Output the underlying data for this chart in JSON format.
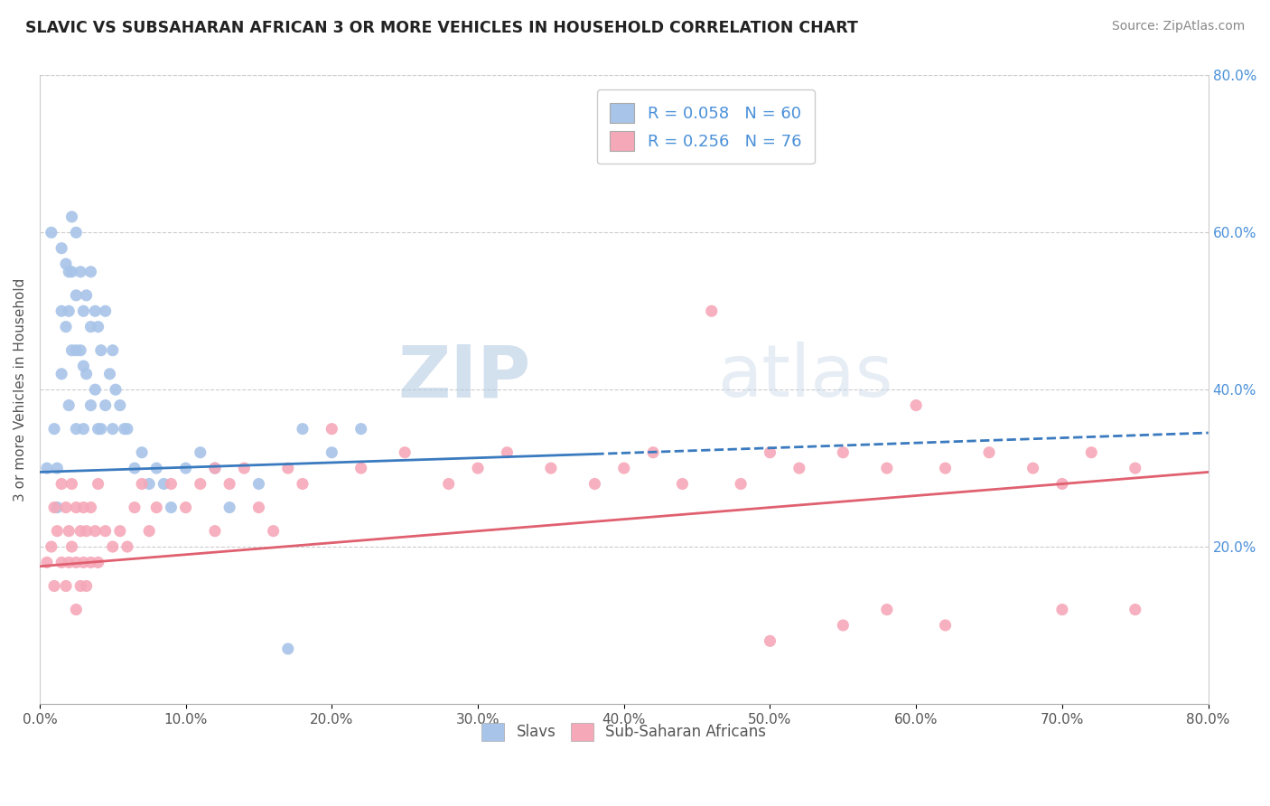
{
  "title": "SLAVIC VS SUBSAHARAN AFRICAN 3 OR MORE VEHICLES IN HOUSEHOLD CORRELATION CHART",
  "source": "Source: ZipAtlas.com",
  "ylabel": "3 or more Vehicles in Household",
  "ylabel_right_ticks": [
    "20.0%",
    "40.0%",
    "60.0%",
    "80.0%"
  ],
  "ylabel_right_values": [
    0.2,
    0.4,
    0.6,
    0.8
  ],
  "xmin": 0.0,
  "xmax": 0.8,
  "ymin": 0.0,
  "ymax": 0.8,
  "legend_slavs_R": "R = 0.058",
  "legend_slavs_N": "N = 60",
  "legend_subsaharan_R": "R = 0.256",
  "legend_subsaharan_N": "N = 76",
  "slavs_color": "#a8c4e8",
  "subsaharan_color": "#f5a8b8",
  "slavs_line_color": "#3a7abf",
  "subsaharan_line_color": "#e06070",
  "watermark_zip": "ZIP",
  "watermark_atlas": "atlas",
  "slavs_scatter_x": [
    0.005,
    0.008,
    0.01,
    0.012,
    0.012,
    0.015,
    0.015,
    0.015,
    0.018,
    0.018,
    0.02,
    0.02,
    0.02,
    0.022,
    0.022,
    0.022,
    0.025,
    0.025,
    0.025,
    0.025,
    0.028,
    0.028,
    0.03,
    0.03,
    0.03,
    0.032,
    0.032,
    0.035,
    0.035,
    0.035,
    0.038,
    0.038,
    0.04,
    0.04,
    0.042,
    0.042,
    0.045,
    0.045,
    0.048,
    0.05,
    0.05,
    0.052,
    0.055,
    0.058,
    0.06,
    0.065,
    0.07,
    0.075,
    0.08,
    0.085,
    0.09,
    0.1,
    0.11,
    0.12,
    0.13,
    0.15,
    0.17,
    0.18,
    0.2,
    0.22
  ],
  "slavs_scatter_y": [
    0.3,
    0.6,
    0.35,
    0.3,
    0.25,
    0.58,
    0.5,
    0.42,
    0.56,
    0.48,
    0.55,
    0.5,
    0.38,
    0.62,
    0.55,
    0.45,
    0.6,
    0.52,
    0.45,
    0.35,
    0.55,
    0.45,
    0.5,
    0.43,
    0.35,
    0.52,
    0.42,
    0.55,
    0.48,
    0.38,
    0.5,
    0.4,
    0.48,
    0.35,
    0.45,
    0.35,
    0.5,
    0.38,
    0.42,
    0.45,
    0.35,
    0.4,
    0.38,
    0.35,
    0.35,
    0.3,
    0.32,
    0.28,
    0.3,
    0.28,
    0.25,
    0.3,
    0.32,
    0.3,
    0.25,
    0.28,
    0.07,
    0.35,
    0.32,
    0.35
  ],
  "subsaharan_scatter_x": [
    0.005,
    0.008,
    0.01,
    0.01,
    0.012,
    0.015,
    0.015,
    0.018,
    0.018,
    0.02,
    0.02,
    0.022,
    0.022,
    0.025,
    0.025,
    0.025,
    0.028,
    0.028,
    0.03,
    0.03,
    0.032,
    0.032,
    0.035,
    0.035,
    0.038,
    0.04,
    0.04,
    0.045,
    0.05,
    0.055,
    0.06,
    0.065,
    0.07,
    0.075,
    0.08,
    0.09,
    0.1,
    0.11,
    0.12,
    0.12,
    0.13,
    0.14,
    0.15,
    0.16,
    0.17,
    0.18,
    0.2,
    0.22,
    0.25,
    0.28,
    0.3,
    0.32,
    0.35,
    0.38,
    0.4,
    0.42,
    0.44,
    0.46,
    0.48,
    0.5,
    0.52,
    0.55,
    0.58,
    0.6,
    0.62,
    0.65,
    0.68,
    0.7,
    0.72,
    0.75,
    0.5,
    0.55,
    0.58,
    0.62,
    0.7,
    0.75
  ],
  "subsaharan_scatter_y": [
    0.18,
    0.2,
    0.25,
    0.15,
    0.22,
    0.28,
    0.18,
    0.25,
    0.15,
    0.22,
    0.18,
    0.28,
    0.2,
    0.25,
    0.18,
    0.12,
    0.22,
    0.15,
    0.25,
    0.18,
    0.22,
    0.15,
    0.25,
    0.18,
    0.22,
    0.28,
    0.18,
    0.22,
    0.2,
    0.22,
    0.2,
    0.25,
    0.28,
    0.22,
    0.25,
    0.28,
    0.25,
    0.28,
    0.3,
    0.22,
    0.28,
    0.3,
    0.25,
    0.22,
    0.3,
    0.28,
    0.35,
    0.3,
    0.32,
    0.28,
    0.3,
    0.32,
    0.3,
    0.28,
    0.3,
    0.32,
    0.28,
    0.5,
    0.28,
    0.32,
    0.3,
    0.32,
    0.3,
    0.38,
    0.3,
    0.32,
    0.3,
    0.28,
    0.32,
    0.3,
    0.08,
    0.1,
    0.12,
    0.1,
    0.12,
    0.12
  ]
}
